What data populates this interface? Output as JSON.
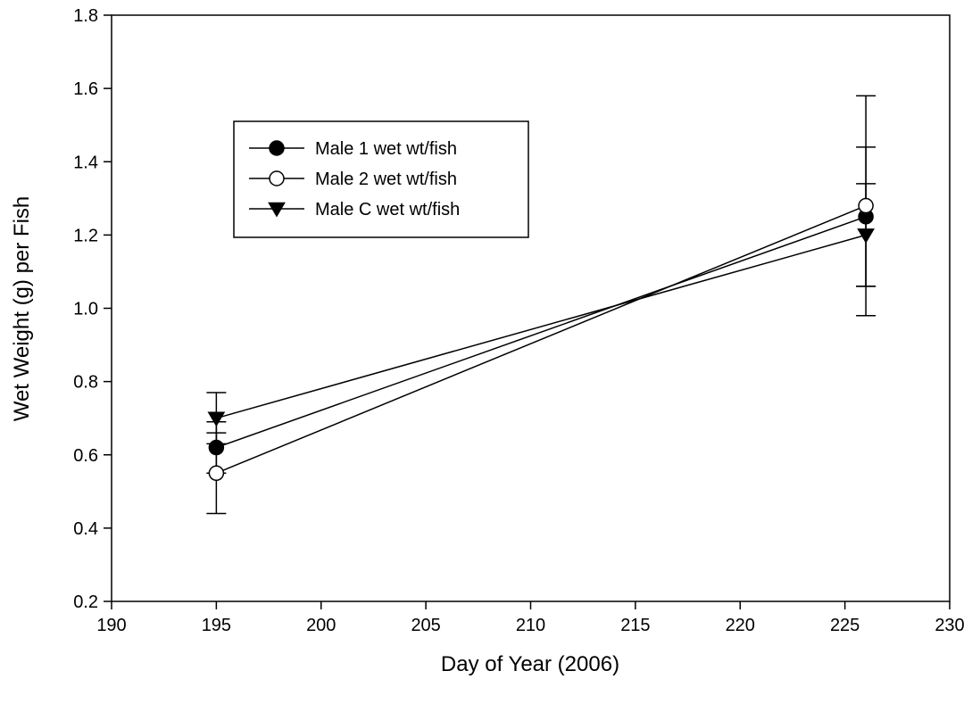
{
  "chart_data": {
    "type": "line",
    "title": "",
    "xlabel": "Day of Year (2006)",
    "ylabel": "Wet Weight (g) per Fish",
    "xlim": [
      190,
      230
    ],
    "ylim": [
      0.2,
      1.8
    ],
    "xticks": [
      190,
      195,
      200,
      205,
      210,
      215,
      220,
      225,
      230
    ],
    "yticks": [
      "0.2",
      "0.4",
      "0.6",
      "0.8",
      "1.0",
      "1.2",
      "1.4",
      "1.6",
      "1.8"
    ],
    "grid": false,
    "legend_position": "upper-left",
    "series": [
      {
        "name": "Male 1 wet wt/fish",
        "marker": "filled-circle",
        "x": [
          195,
          226
        ],
        "y": [
          0.62,
          1.25
        ],
        "yerr": [
          0.07,
          0.19
        ]
      },
      {
        "name": "Male 2 wet wt/fish",
        "marker": "open-circle",
        "x": [
          195,
          226
        ],
        "y": [
          0.55,
          1.28
        ],
        "yerr": [
          0.11,
          0.3
        ]
      },
      {
        "name": "Male C wet wt/fish",
        "marker": "filled-triangle-down",
        "x": [
          195,
          226
        ],
        "y": [
          0.7,
          1.2
        ],
        "yerr": [
          0.07,
          0.14
        ]
      }
    ]
  }
}
